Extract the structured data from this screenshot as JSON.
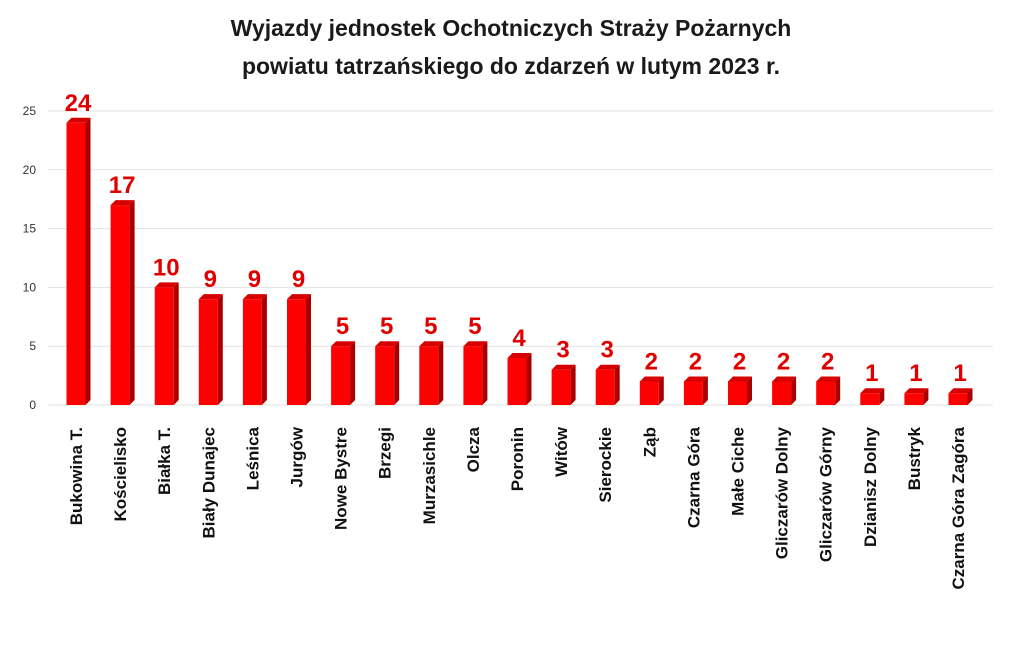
{
  "title_lines": [
    "Wyjazdy jednostek Ochotniczych Straży Pożarnych",
    "powiatu tatrzańskiego do zdarzeń w lutym 2023 r."
  ],
  "colors": {
    "bar_front": "#ff0000",
    "bar_side": "#a80000",
    "bar_top": "#d60000",
    "data_label": "#e00000",
    "grid": "#e2e2e2"
  },
  "chart_data": {
    "type": "bar",
    "title": "Wyjazdy jednostek Ochotniczych Straży Pożarnych powiatu tatrzańskiego do zdarzeń w lutym 2023 r.",
    "xlabel": "",
    "ylabel": "",
    "categories": [
      "Bukowina T.",
      "Kościelisko",
      "Białka T.",
      "Biały Dunajec",
      "Leśnica",
      "Jurgów",
      "Nowe Bystre",
      "Brzegi",
      "Murzasichle",
      "Olcza",
      "Poronin",
      "Witów",
      "Sierockie",
      "Ząb",
      "Czarna Góra",
      "Małe Ciche",
      "Gliczarów Dolny",
      "Gliczarów Górny",
      "Dzianisz Dolny",
      "Bustryk",
      "Czarna Góra Zagóra"
    ],
    "values": [
      24,
      17,
      10,
      9,
      9,
      9,
      5,
      5,
      5,
      5,
      4,
      3,
      3,
      2,
      2,
      2,
      2,
      2,
      1,
      1,
      1
    ],
    "data_labels": [
      "24",
      "17",
      "10",
      "9",
      "9",
      "9",
      "5",
      "5",
      "5",
      "5",
      "4",
      "3",
      "3",
      "2",
      "2",
      "2",
      "2",
      "2",
      "1",
      "1",
      "1"
    ],
    "ylim": [
      0,
      25
    ],
    "yticks": [
      0,
      5,
      10,
      15,
      20,
      25
    ],
    "grid": true,
    "legend": "none",
    "style": "3d-column"
  }
}
